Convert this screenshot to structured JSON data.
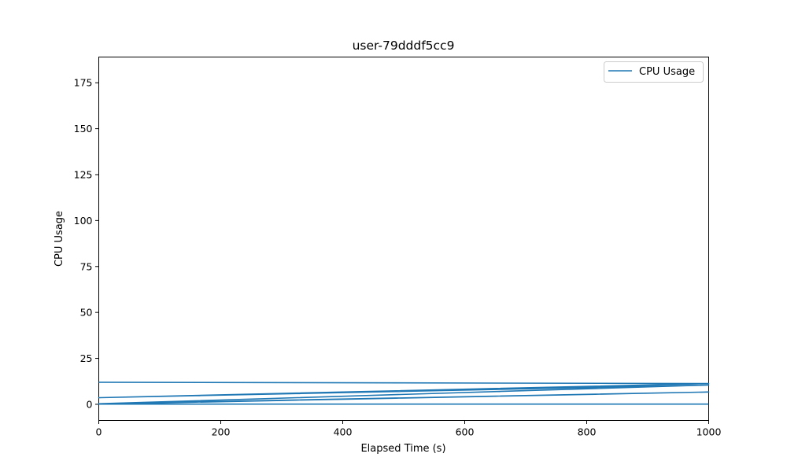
{
  "chart_data": {
    "type": "line",
    "title": "user-79dddf5cc9",
    "xlabel": "Elapsed Time (s)",
    "ylabel": "CPU Usage",
    "xlim": [
      0,
      1000
    ],
    "ylim": [
      -8.8,
      189
    ],
    "x_ticks": [
      0,
      200,
      400,
      600,
      800,
      1000
    ],
    "y_ticks": [
      0,
      25,
      50,
      75,
      100,
      125,
      150,
      175
    ],
    "grid": false,
    "legend_position": "top-right",
    "series": [
      {
        "name": "CPU Usage",
        "color": "#1f77b4",
        "x": [
          0,
          1000,
          0,
          1000,
          0,
          1000,
          0,
          1000
        ],
        "y": [
          12.0,
          11.3,
          3.6,
          10.5,
          0.3,
          6.7,
          0.1,
          0.1
        ]
      }
    ]
  }
}
